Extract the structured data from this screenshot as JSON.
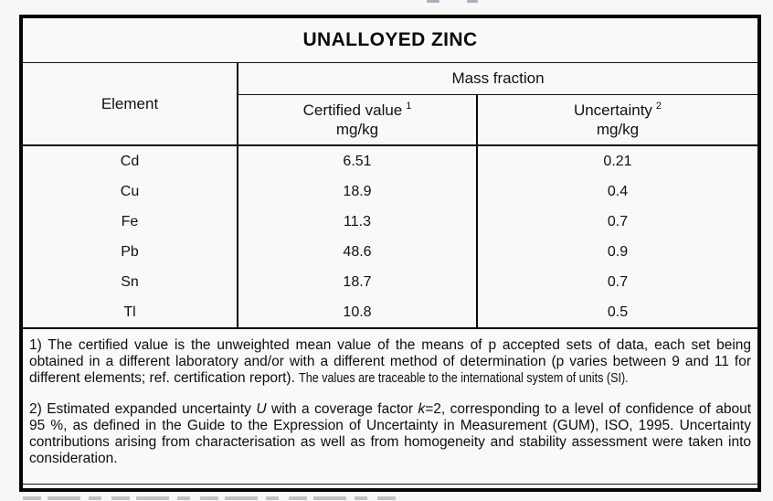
{
  "table": {
    "title": "UNALLOYED ZINC",
    "header": {
      "element": "Element",
      "mass_fraction": "Mass fraction",
      "certified_value_label": "Certified value",
      "certified_value_footnote_ref": "1",
      "certified_value_unit": "mg/kg",
      "uncertainty_label": "Uncertainty",
      "uncertainty_footnote_ref": "2",
      "uncertainty_unit": "mg/kg"
    },
    "rows": [
      {
        "element": "Cd",
        "certified_value": "6.51",
        "uncertainty": "0.21"
      },
      {
        "element": "Cu",
        "certified_value": "18.9",
        "uncertainty": "0.4"
      },
      {
        "element": "Fe",
        "certified_value": "11.3",
        "uncertainty": "0.7"
      },
      {
        "element": "Pb",
        "certified_value": "48.6",
        "uncertainty": "0.9"
      },
      {
        "element": "Sn",
        "certified_value": "18.7",
        "uncertainty": "0.7"
      },
      {
        "element": "Tl",
        "certified_value": "10.8",
        "uncertainty": "0.5"
      }
    ],
    "footnote1": {
      "body": "1) The certified value is the unweighted mean value of the means of p accepted sets of data, each set being obtained in a different laboratory and/or with a different method of determination (p varies between 9 and 11 for different elements; ref. certification report). ",
      "traceability_note": "The values are traceable to the international system of units (SI)."
    },
    "footnote2": {
      "part1": "2) Estimated expanded uncertainty ",
      "u_symbol": "U",
      "part2": " with a coverage factor ",
      "k_symbol": "k",
      "part3": "=2, corresponding to a level of confidence of about 95 %, as defined in the Guide to the Expression of Uncertainty in Measurement (GUM), ISO, 1995. Uncertainty contributions arising from characterisation as well as from homogeneity and stability assessment were taken into consideration."
    }
  },
  "colors": {
    "border": "#060606",
    "page_background": "#f7f7f6",
    "text": "#111111"
  }
}
